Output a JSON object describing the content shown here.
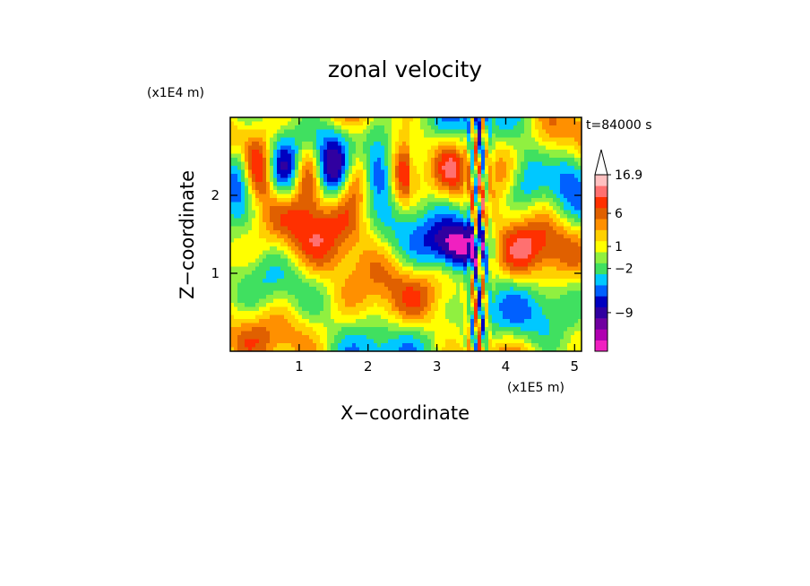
{
  "chart_data": {
    "type": "heatmap",
    "title": "zonal velocity",
    "xlabel": "X−coordinate",
    "ylabel": "Z−coordinate",
    "x_scale_label": "(x1E5 m)",
    "y_scale_label": "(x1E4 m)",
    "time_label": "t=84000 s",
    "xlim": [
      0.0,
      5.1
    ],
    "ylim": [
      0.0,
      3.0
    ],
    "x_ticks": [
      1,
      2,
      3,
      4,
      5
    ],
    "y_ticks": [
      1,
      2
    ],
    "colorbar": {
      "labels": [
        {
          "value": "16.9",
          "level": 16.9
        },
        {
          "value": "6",
          "level": 6
        },
        {
          "value": "1",
          "level": 1
        },
        {
          "value": "−2",
          "level": -2
        },
        {
          "value": "−9",
          "level": -9
        }
      ],
      "colors": [
        "#f020c0",
        "#b000b0",
        "#7000a0",
        "#3000a0",
        "#0000c0",
        "#0060ff",
        "#00c8ff",
        "#40e060",
        "#90f040",
        "#ffff00",
        "#ffd000",
        "#ff9000",
        "#e06000",
        "#ff3000",
        "#ff7070",
        "#ffc0c0"
      ],
      "extend": "max"
    },
    "field_description_levels": {
      "strong_negative": -9,
      "negative": -2,
      "weak": 0,
      "positive": 1,
      "strong_positive": 6
    }
  }
}
